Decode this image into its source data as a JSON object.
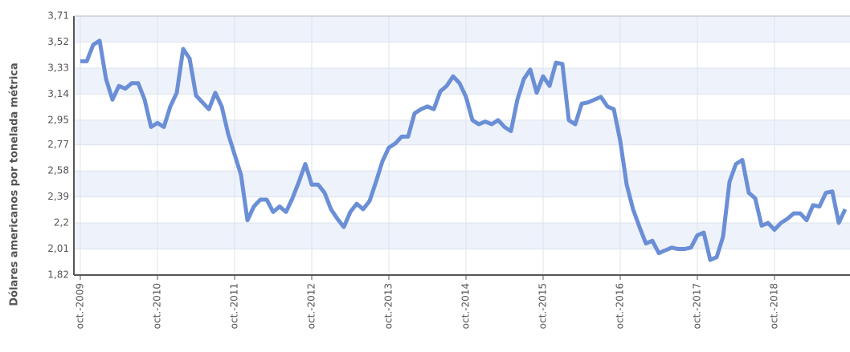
{
  "chart_data": {
    "type": "line",
    "ylabel": "Dólares americanos por tonelada métrica",
    "categories": [
      "oct.-2009",
      null,
      null,
      null,
      null,
      null,
      null,
      null,
      null,
      null,
      null,
      null,
      "oct.-2010",
      null,
      null,
      null,
      null,
      null,
      null,
      null,
      null,
      null,
      null,
      null,
      "oct.-2011",
      null,
      null,
      null,
      null,
      null,
      null,
      null,
      null,
      null,
      null,
      null,
      "oct.-2012",
      null,
      null,
      null,
      null,
      null,
      null,
      null,
      null,
      null,
      null,
      null,
      "oct.-2013",
      null,
      null,
      null,
      null,
      null,
      null,
      null,
      null,
      null,
      null,
      null,
      "oct.-2014",
      null,
      null,
      null,
      null,
      null,
      null,
      null,
      null,
      null,
      null,
      null,
      "oct.-2015",
      null,
      null,
      null,
      null,
      null,
      null,
      null,
      null,
      null,
      null,
      null,
      "oct.-2016",
      null,
      null,
      null,
      null,
      null,
      null,
      null,
      null,
      null,
      null,
      null,
      "oct.-2017",
      null,
      null,
      null,
      null,
      null,
      null,
      null,
      null,
      null,
      null,
      null,
      "oct.-2018",
      null,
      null,
      null,
      null,
      null,
      null,
      null,
      null,
      null,
      null,
      null
    ],
    "series": [
      {
        "color": "#6b8fd6",
        "values": [
          3.38,
          3.38,
          3.5,
          3.53,
          3.25,
          3.1,
          3.2,
          3.18,
          3.22,
          3.22,
          3.1,
          2.9,
          2.93,
          2.9,
          3.05,
          3.15,
          3.47,
          3.4,
          3.13,
          3.08,
          3.03,
          3.15,
          3.05,
          2.85,
          2.7,
          2.55,
          2.22,
          2.32,
          2.37,
          2.37,
          2.28,
          2.32,
          2.28,
          2.38,
          2.5,
          2.63,
          2.48,
          2.48,
          2.42,
          2.3,
          2.23,
          2.17,
          2.28,
          2.34,
          2.3,
          2.36,
          2.5,
          2.65,
          2.75,
          2.78,
          2.83,
          2.83,
          3.0,
          3.03,
          3.05,
          3.03,
          3.16,
          3.2,
          3.27,
          3.22,
          3.12,
          2.95,
          2.92,
          2.94,
          2.92,
          2.95,
          2.9,
          2.87,
          3.1,
          3.25,
          3.32,
          3.15,
          3.27,
          3.2,
          3.37,
          3.36,
          2.95,
          2.92,
          3.07,
          3.08,
          3.1,
          3.12,
          3.05,
          3.03,
          2.8,
          2.48,
          2.3,
          2.17,
          2.05,
          2.07,
          1.98,
          2.0,
          2.02,
          2.01,
          2.01,
          2.02,
          2.11,
          2.13,
          1.93,
          1.95,
          2.1,
          2.5,
          2.63,
          2.66,
          2.42,
          2.38,
          2.18,
          2.2,
          2.15,
          2.2,
          2.23,
          2.27,
          2.27,
          2.22,
          2.33,
          2.32,
          2.42,
          2.43,
          2.2,
          2.3
        ]
      }
    ],
    "ylim": [
      1.82,
      3.71
    ],
    "yticks": [
      {
        "value": 1.82,
        "label": "1,82"
      },
      {
        "value": 2.01,
        "label": "2,01"
      },
      {
        "value": 2.2,
        "label": "2,2"
      },
      {
        "value": 2.39,
        "label": "2,39"
      },
      {
        "value": 2.58,
        "label": "2,58"
      },
      {
        "value": 2.77,
        "label": "2,77"
      },
      {
        "value": 2.95,
        "label": "2,95"
      },
      {
        "value": 3.14,
        "label": "3,14"
      },
      {
        "value": 3.33,
        "label": "3,33"
      },
      {
        "value": 3.52,
        "label": "3,52"
      },
      {
        "value": 3.71,
        "label": "3,71"
      }
    ],
    "grid": true
  }
}
